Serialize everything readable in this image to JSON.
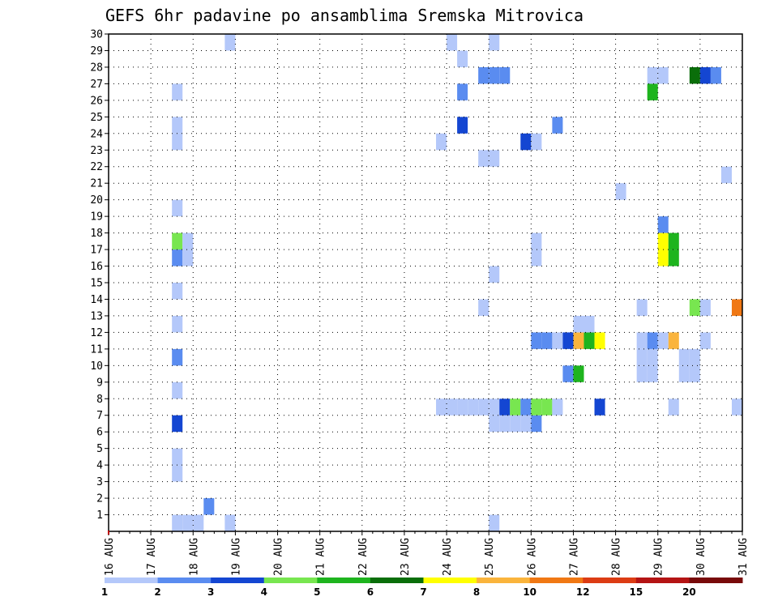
{
  "chart_data": {
    "type": "heatmap",
    "title": "GEFS 6hr padavine po ansamblima Sremska Mitrovica",
    "x_ticks": [
      "16 AUG",
      "17 AUG",
      "18 AUG",
      "19 AUG",
      "20 AUG",
      "21 AUG",
      "22 AUG",
      "23 AUG",
      "24 AUG",
      "25 AUG",
      "26 AUG",
      "27 AUG",
      "28 AUG",
      "29 AUG",
      "30 AUG",
      "31 AUG"
    ],
    "x_range": [
      0,
      60
    ],
    "y_ticks": [
      "1",
      "2",
      "3",
      "4",
      "5",
      "6",
      "7",
      "8",
      "9",
      "10",
      "11",
      "12",
      "13",
      "14",
      "15",
      "16",
      "17",
      "18",
      "19",
      "20",
      "21",
      "22",
      "23",
      "24",
      "25",
      "26",
      "27",
      "28",
      "29",
      "30"
    ],
    "y_range": [
      0,
      30
    ],
    "grid": true,
    "legend_placement": "bottom",
    "legend": {
      "labels": [
        "1",
        "2",
        "3",
        "4",
        "5",
        "6",
        "7",
        "8",
        "10",
        "12",
        "15",
        "20"
      ],
      "colors": [
        "#b4c8fa",
        "#5a8cf0",
        "#1446d2",
        "#78e650",
        "#1eb41e",
        "#0a6e0a",
        "#ffff00",
        "#fab43c",
        "#f07814",
        "#dc3c14",
        "#b41414",
        "#780a0a"
      ]
    },
    "cells": [
      {
        "t": 6,
        "m": 0,
        "c": 1
      },
      {
        "t": 7,
        "m": 0,
        "c": 1
      },
      {
        "t": 8,
        "m": 0,
        "c": 1
      },
      {
        "t": 9,
        "m": 1,
        "c": 2
      },
      {
        "t": 6,
        "m": 3,
        "c": 1
      },
      {
        "t": 6,
        "m": 4,
        "c": 1
      },
      {
        "t": 6,
        "m": 6,
        "c": 3
      },
      {
        "t": 6,
        "m": 8,
        "c": 1
      },
      {
        "t": 6,
        "m": 10,
        "c": 2
      },
      {
        "t": 6,
        "m": 12,
        "c": 1
      },
      {
        "t": 6,
        "m": 14,
        "c": 1
      },
      {
        "t": 6,
        "m": 16,
        "c": 2
      },
      {
        "t": 7,
        "m": 16,
        "c": 1
      },
      {
        "t": 6,
        "m": 17,
        "c": 4
      },
      {
        "t": 7,
        "m": 17,
        "c": 1
      },
      {
        "t": 6,
        "m": 19,
        "c": 1
      },
      {
        "t": 6,
        "m": 23,
        "c": 1
      },
      {
        "t": 6,
        "m": 24,
        "c": 1
      },
      {
        "t": 6,
        "m": 26,
        "c": 1
      },
      {
        "t": 11,
        "m": 0,
        "c": 1
      },
      {
        "t": 11,
        "m": 29,
        "c": 1
      },
      {
        "t": 36,
        "m": 0,
        "c": 1
      },
      {
        "t": 36,
        "m": 29,
        "c": 1
      },
      {
        "t": 32,
        "m": 29,
        "c": 1
      },
      {
        "t": 31,
        "m": 23,
        "c": 1
      },
      {
        "t": 36,
        "m": 6,
        "c": 1
      },
      {
        "t": 37,
        "m": 6,
        "c": 1
      },
      {
        "t": 38,
        "m": 6,
        "c": 1
      },
      {
        "t": 39,
        "m": 6,
        "c": 1
      },
      {
        "t": 40,
        "m": 6,
        "c": 2
      },
      {
        "t": 31,
        "m": 7,
        "c": 1
      },
      {
        "t": 32,
        "m": 7,
        "c": 1
      },
      {
        "t": 33,
        "m": 7,
        "c": 1
      },
      {
        "t": 34,
        "m": 7,
        "c": 1
      },
      {
        "t": 35,
        "m": 7,
        "c": 1
      },
      {
        "t": 36,
        "m": 7,
        "c": 1
      },
      {
        "t": 37,
        "m": 7,
        "c": 3
      },
      {
        "t": 38,
        "m": 7,
        "c": 4
      },
      {
        "t": 39,
        "m": 7,
        "c": 2
      },
      {
        "t": 40,
        "m": 7,
        "c": 4
      },
      {
        "t": 41,
        "m": 7,
        "c": 4
      },
      {
        "t": 42,
        "m": 7,
        "c": 1
      },
      {
        "t": 46,
        "m": 7,
        "c": 3
      },
      {
        "t": 53,
        "m": 7,
        "c": 1
      },
      {
        "t": 59,
        "m": 7,
        "c": 1
      },
      {
        "t": 43,
        "m": 9,
        "c": 2
      },
      {
        "t": 44,
        "m": 9,
        "c": 5
      },
      {
        "t": 50,
        "m": 9,
        "c": 1
      },
      {
        "t": 51,
        "m": 9,
        "c": 1
      },
      {
        "t": 54,
        "m": 9,
        "c": 1
      },
      {
        "t": 55,
        "m": 9,
        "c": 1
      },
      {
        "t": 50,
        "m": 10,
        "c": 1
      },
      {
        "t": 51,
        "m": 10,
        "c": 1
      },
      {
        "t": 54,
        "m": 10,
        "c": 1
      },
      {
        "t": 55,
        "m": 10,
        "c": 1
      },
      {
        "t": 40,
        "m": 11,
        "c": 2
      },
      {
        "t": 41,
        "m": 11,
        "c": 2
      },
      {
        "t": 42,
        "m": 11,
        "c": 1
      },
      {
        "t": 43,
        "m": 11,
        "c": 3
      },
      {
        "t": 44,
        "m": 11,
        "c": 8
      },
      {
        "t": 45,
        "m": 11,
        "c": 5
      },
      {
        "t": 46,
        "m": 11,
        "c": 7
      },
      {
        "t": 50,
        "m": 11,
        "c": 1
      },
      {
        "t": 51,
        "m": 11,
        "c": 2
      },
      {
        "t": 52,
        "m": 11,
        "c": 1
      },
      {
        "t": 53,
        "m": 11,
        "c": 8
      },
      {
        "t": 56,
        "m": 11,
        "c": 1
      },
      {
        "t": 44,
        "m": 12,
        "c": 1
      },
      {
        "t": 45,
        "m": 12,
        "c": 1
      },
      {
        "t": 35,
        "m": 13,
        "c": 1
      },
      {
        "t": 50,
        "m": 13,
        "c": 1
      },
      {
        "t": 55,
        "m": 13,
        "c": 4
      },
      {
        "t": 56,
        "m": 13,
        "c": 1
      },
      {
        "t": 59,
        "m": 13,
        "c": 9
      },
      {
        "t": 36,
        "m": 15,
        "c": 1
      },
      {
        "t": 40,
        "m": 17,
        "c": 1
      },
      {
        "t": 52,
        "m": 17,
        "c": 7
      },
      {
        "t": 53,
        "m": 17,
        "c": 5
      },
      {
        "t": 40,
        "m": 16,
        "c": 1
      },
      {
        "t": 52,
        "m": 16,
        "c": 7
      },
      {
        "t": 53,
        "m": 16,
        "c": 5
      },
      {
        "t": 52,
        "m": 18,
        "c": 2
      },
      {
        "t": 48,
        "m": 20,
        "c": 1
      },
      {
        "t": 58,
        "m": 21,
        "c": 1
      },
      {
        "t": 35,
        "m": 22,
        "c": 1
      },
      {
        "t": 36,
        "m": 22,
        "c": 1
      },
      {
        "t": 39,
        "m": 23,
        "c": 3
      },
      {
        "t": 40,
        "m": 23,
        "c": 1
      },
      {
        "t": 33,
        "m": 24,
        "c": 3
      },
      {
        "t": 42,
        "m": 24,
        "c": 2
      },
      {
        "t": 33,
        "m": 26,
        "c": 2
      },
      {
        "t": 51,
        "m": 26,
        "c": 5
      },
      {
        "t": 35,
        "m": 27,
        "c": 2
      },
      {
        "t": 36,
        "m": 27,
        "c": 2
      },
      {
        "t": 37,
        "m": 27,
        "c": 2
      },
      {
        "t": 51,
        "m": 27,
        "c": 1
      },
      {
        "t": 52,
        "m": 27,
        "c": 1
      },
      {
        "t": 55,
        "m": 27,
        "c": 6
      },
      {
        "t": 56,
        "m": 27,
        "c": 3
      },
      {
        "t": 57,
        "m": 27,
        "c": 2
      },
      {
        "t": 33,
        "m": 28,
        "c": 1
      }
    ]
  }
}
